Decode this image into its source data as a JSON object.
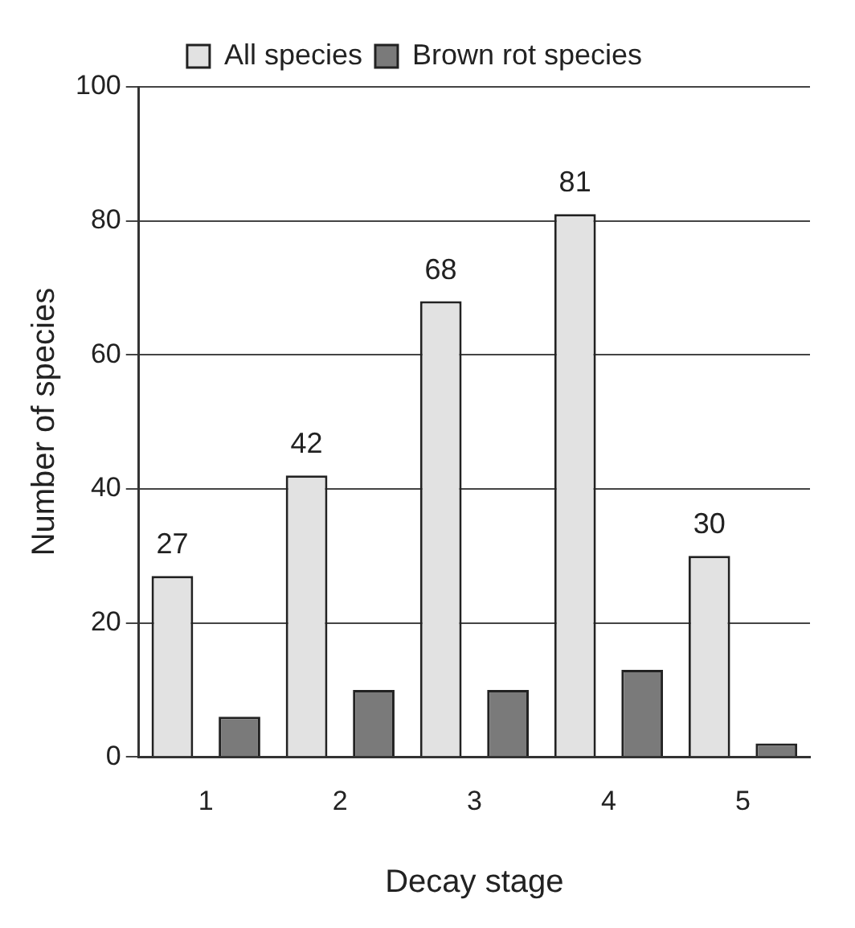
{
  "chart_data": {
    "type": "bar",
    "xlabel": "Decay stage",
    "ylabel": "Number of species",
    "categories": [
      "1",
      "2",
      "3",
      "4",
      "5"
    ],
    "series": [
      {
        "name": "All species",
        "color": "#e2e2e2",
        "values": [
          27,
          42,
          68,
          81,
          30
        ],
        "value_labels": [
          "27",
          "42",
          "68",
          "81",
          "30"
        ]
      },
      {
        "name": "Brown rot species",
        "color": "#7a7a7a",
        "values": [
          6,
          10,
          10,
          13,
          2
        ]
      }
    ],
    "ylim": [
      0,
      100
    ],
    "yticks": [
      0,
      20,
      40,
      60,
      80,
      100
    ],
    "grid": "y",
    "legend": "top"
  }
}
